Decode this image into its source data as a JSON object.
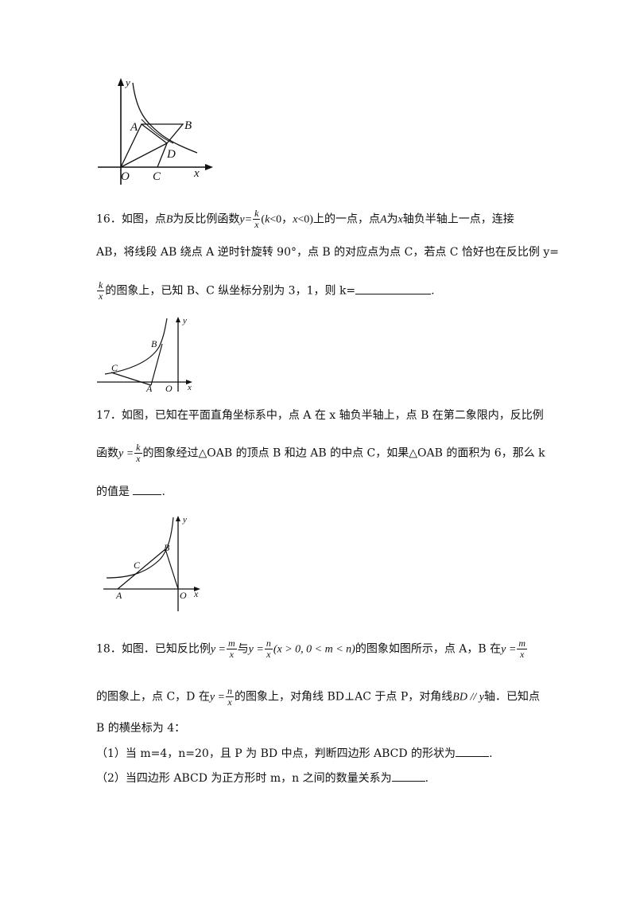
{
  "fig15": {
    "labels": {
      "y": "y",
      "x": "x",
      "O": "O",
      "A": "A",
      "B": "B",
      "C": "C",
      "D": "D"
    }
  },
  "q16": {
    "line1_pre": "16．如图，点",
    "line1_B": "B",
    "line1_mid": "为反比例函数",
    "y_eq": "y=",
    "frac_num": "k",
    "frac_den": "x",
    "cond_open": "(",
    "cond_k": "k",
    "cond_lt0a": "<0，",
    "cond_x": "x",
    "cond_lt0b": "<0)",
    "line1_post": "上的一点，点",
    "line1_A": "A",
    "line1_post2": "为",
    "line1_xaxis": "x",
    "line1_post3": "轴负半轴上一点，连接",
    "line2": "AB，将线段 AB 绕点 A 逆时针旋转 90°，点 B 的对应点为点 C，若点 C 恰好也在反比例 y=",
    "line3_frac_num": "k",
    "line3_frac_den": "x",
    "line3_text": "的图象上，已知 B、C 纵坐标分别为 3，1，则 k=",
    "line3_end": "."
  },
  "fig16": {
    "labels": {
      "y": "y",
      "x": "x",
      "O": "O",
      "A": "A",
      "B": "B",
      "C": "C"
    }
  },
  "q17": {
    "line1": "17．如图，已知在平面直角坐标系中，点 A 在 x 轴负半轴上，点 B 在第二象限内，反比例",
    "line2_pre": "函数",
    "y_eq": "y =",
    "frac_num": "k",
    "frac_den": "x",
    "line2_post": "的图象经过△OAB 的顶点 B 和边 AB 的中点 C，如果△OAB 的面积为 6，那么 k",
    "line3": "的值是",
    "line3_end": "."
  },
  "fig17": {
    "labels": {
      "y": "y",
      "x": "x",
      "O": "O",
      "A": "A",
      "B": "B",
      "C": "C"
    }
  },
  "q18": {
    "line1_pre": "18．如图．已知反比例",
    "eq1_y": "y =",
    "eq1_num": "m",
    "eq1_den": "x",
    "with": "与",
    "eq2_y": "y =",
    "eq2_num": "n",
    "eq2_den": "x",
    "cond": "(x > 0, 0 < m < n)",
    "line1_mid": "的图象如图所示，点 A，B 在",
    "eq3_y": "y =",
    "eq3_num": "m",
    "eq3_den": "x",
    "line2_pre": "的图象上，点 C，D 在",
    "eq4_y": "y =",
    "eq4_num": "n",
    "eq4_den": "x",
    "line2_mid": "的图象上，对角线 BD⊥AC 于点 P，对角线",
    "bd_parallel": "BD // y",
    "line2_post": "轴．已知点",
    "line3": "B 的横坐标为 4：",
    "sub1": "（1）当 m=4，n=20，且 P 为 BD 中点，判断四边形 ABCD 的形状为",
    "sub1_end": ".",
    "sub2": "（2）当四边形 ABCD 为正方形时 m，n 之间的数量关系为",
    "sub2_end": "."
  }
}
